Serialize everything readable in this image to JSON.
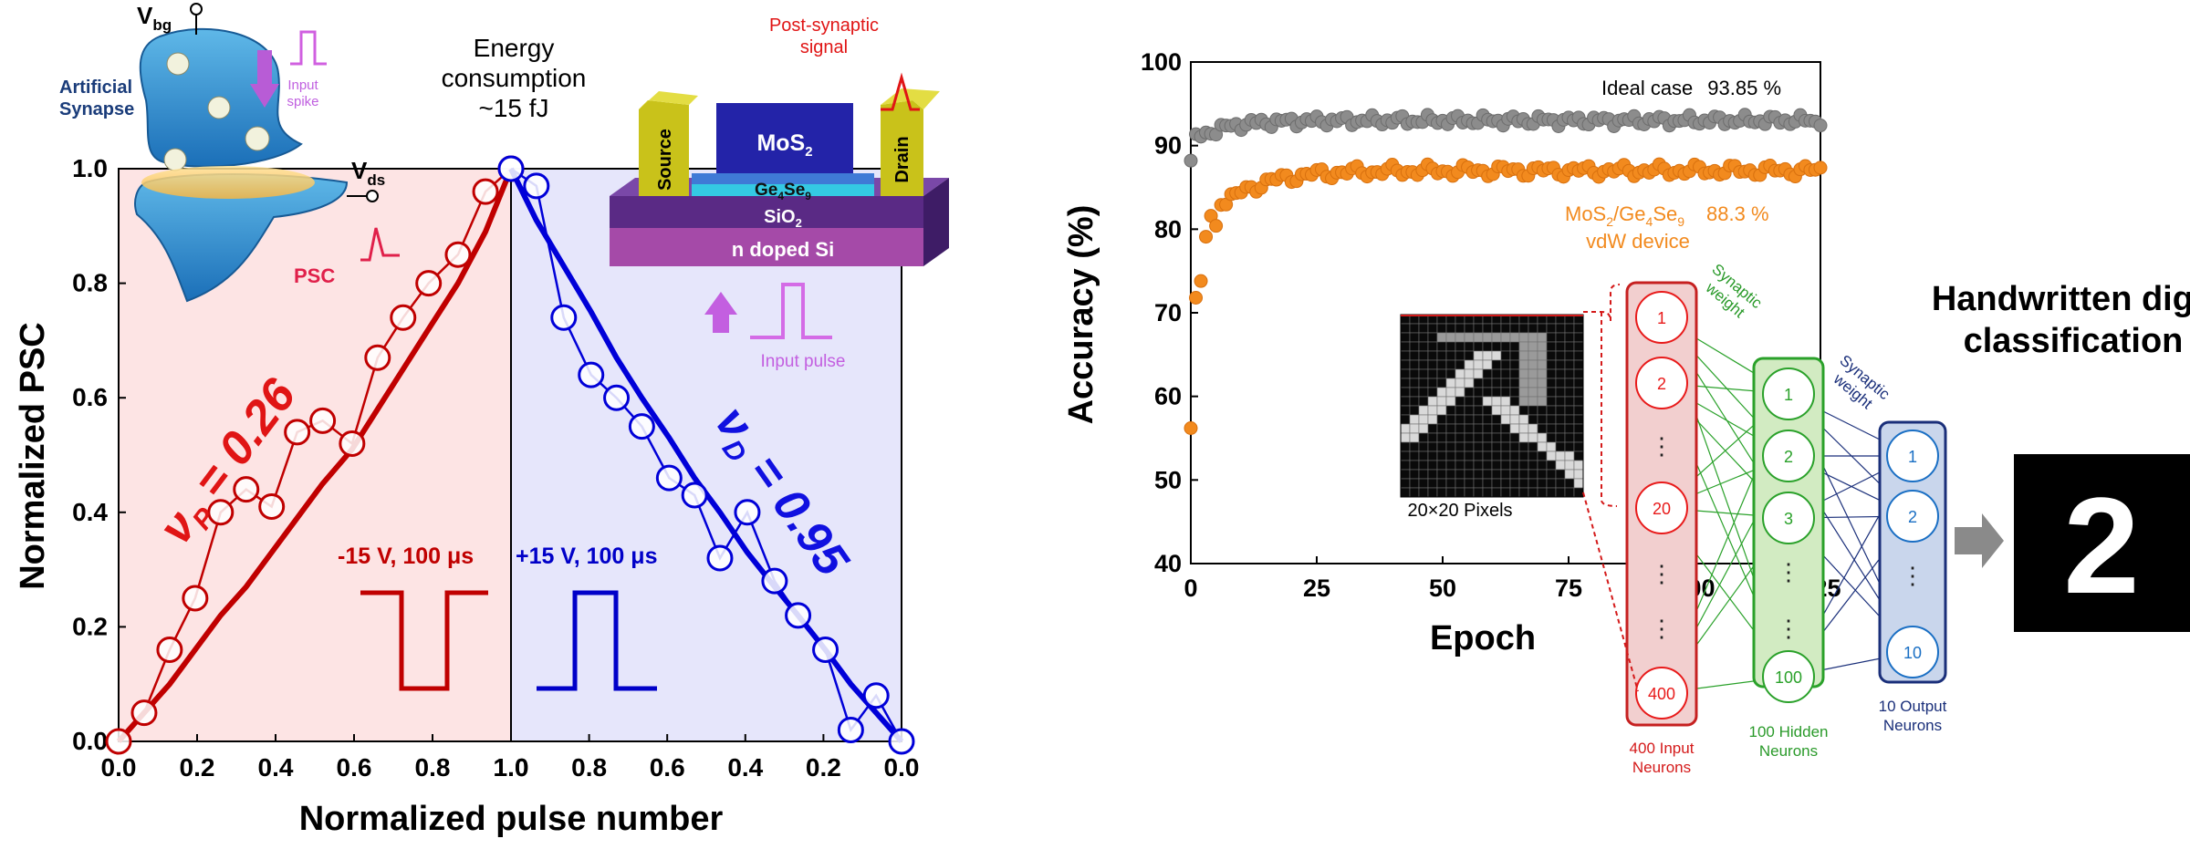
{
  "colors": {
    "potentiation": "#c00000",
    "depression": "#0000d8",
    "ideal": "#8c8c8c",
    "device": "#f28a1e",
    "input_neuron": "#e81a1a",
    "hidden_neuron": "#2aa12a",
    "output_neuron": "#1a6fc4",
    "synapse_label": "#e0204a",
    "pulse_arrow": "#c35fe0"
  },
  "left_panel": {
    "synapse_label": "Artificial\nSynapse",
    "vbg_label": "V",
    "vbg_sub": "bg",
    "vds_label": "V",
    "vds_sub": "ds",
    "input_spike_label": "Input\nspike",
    "psc_label": "PSC",
    "energy_label": "Energy\nconsumption\n~15 fJ",
    "post_synaptic_label": "Post-synaptic\nsignal",
    "device_layers": {
      "source": "Source",
      "drain": "Drain",
      "channel": "MoS",
      "channel_sub": "2",
      "ge": "Ge",
      "ge_sub1": "4",
      "se": "Se",
      "se_sub": "9",
      "oxide": "SiO",
      "oxide_sub": "2",
      "substrate": "n doped Si"
    },
    "input_pulse_label": "Input pulse",
    "pot_pulse_label": "-15 V, 100 μs",
    "dep_pulse_label": "+15 V, 100 μs",
    "nu_p_label": "ν",
    "nu_p_sub": "P",
    "nu_p_value": " = 0.26",
    "nu_d_label": "ν",
    "nu_d_sub": "D",
    "nu_d_value": " = 0.95"
  },
  "right_panel": {
    "ideal_label": "Ideal case",
    "ideal_value": "93.85 %",
    "device_label_1": "MoS",
    "device_label_sub1": "2",
    "device_label_mid": "/Ge",
    "device_label_sub2": "4",
    "device_label_se": "Se",
    "device_label_sub3": "9",
    "device_label_2": "vdW device",
    "device_value": "88.3 %",
    "pixels_label": "20×20 Pixels",
    "input_layer_label": "400 Input\nNeurons",
    "hidden_layer_label": "100 Hidden\nNeurons",
    "output_layer_label": "10 Output\nNeurons",
    "synaptic_weight_1": "Synaptic\nweight",
    "synaptic_weight_2": "Synaptic\nweight",
    "input_nodes": [
      "1",
      "2",
      "⋮",
      "20",
      "⋮",
      "⋮",
      "400"
    ],
    "hidden_nodes": [
      "1",
      "2",
      "3",
      "⋮",
      "⋮",
      "100"
    ],
    "output_nodes": [
      "1",
      "2",
      "⋮",
      "10"
    ],
    "classification_title": "Handwritten digit\nclassification",
    "classification_result": "2"
  },
  "chart_data": [
    {
      "type": "line",
      "xlabel": "Normalized pulse number",
      "ylabel": "Normalized PSC",
      "ylim": [
        0.0,
        1.0
      ],
      "yticks": [
        "0.0",
        "0.2",
        "0.4",
        "0.6",
        "0.8",
        "1.0"
      ],
      "xticks_potentiation": [
        "0.0",
        "0.2",
        "0.4",
        "0.6",
        "0.8",
        "1.0"
      ],
      "xticks_depression": [
        "1.0",
        "0.8",
        "0.6",
        "0.4",
        "0.2",
        "0.0"
      ],
      "series": [
        {
          "name": "Potentiation",
          "x": [
            0.0,
            0.065,
            0.13,
            0.195,
            0.26,
            0.325,
            0.39,
            0.455,
            0.52,
            0.595,
            0.66,
            0.725,
            0.79,
            0.865,
            0.935,
            1.0
          ],
          "y": [
            0.0,
            0.05,
            0.16,
            0.25,
            0.4,
            0.44,
            0.41,
            0.54,
            0.56,
            0.52,
            0.67,
            0.74,
            0.8,
            0.85,
            0.96,
            1.0
          ],
          "fit_y": [
            0.0,
            0.05,
            0.1,
            0.16,
            0.22,
            0.27,
            0.33,
            0.39,
            0.45,
            0.51,
            0.58,
            0.65,
            0.72,
            0.8,
            0.89,
            1.0
          ]
        },
        {
          "name": "Depression",
          "x": [
            1.0,
            0.935,
            0.865,
            0.795,
            0.73,
            0.665,
            0.595,
            0.53,
            0.465,
            0.395,
            0.325,
            0.265,
            0.195,
            0.13,
            0.065,
            0.0
          ],
          "y": [
            1.0,
            0.97,
            0.74,
            0.64,
            0.6,
            0.55,
            0.46,
            0.43,
            0.32,
            0.4,
            0.28,
            0.22,
            0.16,
            0.02,
            0.08,
            0.0
          ],
          "fit_y": [
            1.0,
            0.91,
            0.83,
            0.75,
            0.67,
            0.6,
            0.53,
            0.46,
            0.4,
            0.33,
            0.27,
            0.22,
            0.16,
            0.1,
            0.05,
            0.0
          ]
        }
      ]
    },
    {
      "type": "scatter",
      "xlabel": "Epoch",
      "ylabel": "Accuracy (%)",
      "xlim": [
        0,
        125
      ],
      "ylim": [
        40,
        100
      ],
      "xticks": [
        "0",
        "25",
        "50",
        "75",
        "100",
        "125"
      ],
      "yticks": [
        "40",
        "50",
        "60",
        "70",
        "80",
        "90",
        "100"
      ],
      "series": [
        {
          "name": "Ideal case",
          "final_accuracy": 93.85,
          "start": 88.2,
          "plateau": 93.0
        },
        {
          "name": "MoS2/Ge4Se9 vdW device",
          "final_accuracy": 88.3,
          "start": 56.2,
          "plateau": 87.0
        }
      ]
    }
  ]
}
